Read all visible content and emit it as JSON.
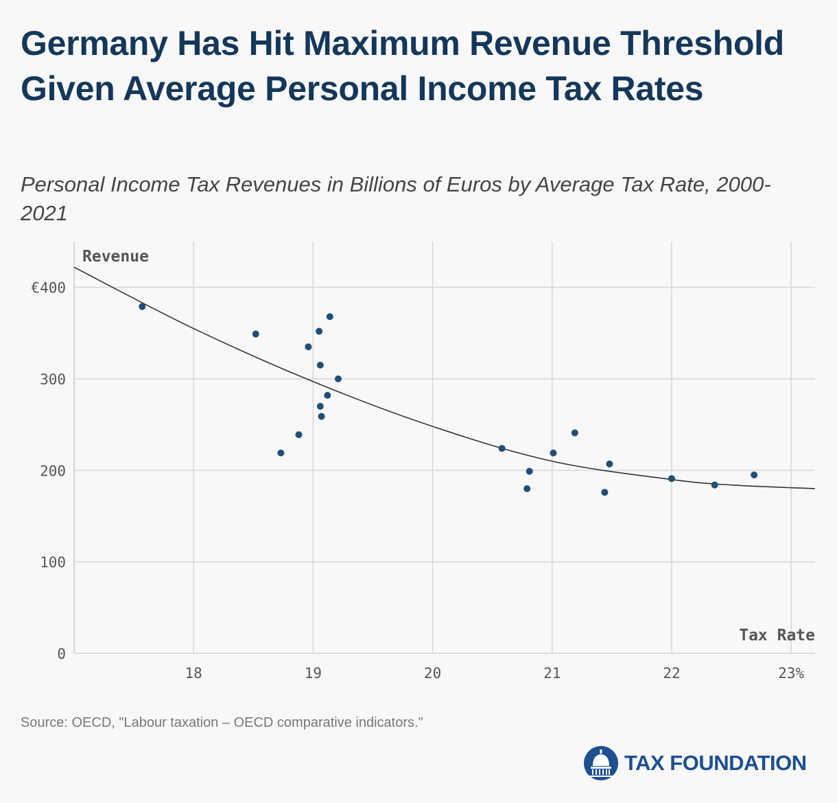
{
  "title": "Germany Has Hit Maximum Revenue Threshold Given Average Personal Income Tax Rates",
  "subtitle": "Personal Income Tax Revenues in Billions of Euros by Average Tax Rate, 2000-2021",
  "source": "Source: OECD, \"Labour taxation – OECD comparative indicators.\"",
  "logo": {
    "text": "TAX FOUNDATION",
    "icon": "capitol-dome-icon"
  },
  "colors": {
    "title": "#14375a",
    "points": "#1f4e79",
    "trend": "#333333",
    "grid": "#d6d6d6"
  },
  "chart_data": {
    "type": "scatter",
    "ylabel": "Revenue",
    "xlabel": "Tax Rate",
    "xlim": [
      17,
      23.2
    ],
    "ylim": [
      0,
      450
    ],
    "xticks": [
      18,
      19,
      20,
      21,
      22,
      23
    ],
    "xtick_labels": [
      "18",
      "19",
      "20",
      "21",
      "22",
      "23%"
    ],
    "yticks": [
      0,
      100,
      200,
      300,
      400
    ],
    "ytick_labels": [
      "0",
      "100",
      "200",
      "300",
      "€400"
    ],
    "grid": true,
    "points": [
      {
        "x": 17.57,
        "y": 379
      },
      {
        "x": 18.52,
        "y": 349
      },
      {
        "x": 18.73,
        "y": 219
      },
      {
        "x": 18.88,
        "y": 239
      },
      {
        "x": 18.96,
        "y": 335
      },
      {
        "x": 19.05,
        "y": 352
      },
      {
        "x": 19.06,
        "y": 315
      },
      {
        "x": 19.06,
        "y": 270
      },
      {
        "x": 19.07,
        "y": 259
      },
      {
        "x": 19.12,
        "y": 282
      },
      {
        "x": 19.14,
        "y": 368
      },
      {
        "x": 19.21,
        "y": 300
      },
      {
        "x": 20.58,
        "y": 224
      },
      {
        "x": 20.79,
        "y": 180
      },
      {
        "x": 20.81,
        "y": 199
      },
      {
        "x": 21.01,
        "y": 219
      },
      {
        "x": 21.19,
        "y": 241
      },
      {
        "x": 21.44,
        "y": 176
      },
      {
        "x": 21.48,
        "y": 207
      },
      {
        "x": 22.0,
        "y": 191
      },
      {
        "x": 22.36,
        "y": 184
      },
      {
        "x": 22.69,
        "y": 195
      }
    ],
    "trendline": {
      "type": "quadratic",
      "points": [
        {
          "x": 17.0,
          "y": 422
        },
        {
          "x": 18.0,
          "y": 355
        },
        {
          "x": 19.0,
          "y": 297
        },
        {
          "x": 20.0,
          "y": 248
        },
        {
          "x": 21.0,
          "y": 210
        },
        {
          "x": 22.0,
          "y": 190
        },
        {
          "x": 22.5,
          "y": 184
        },
        {
          "x": 23.2,
          "y": 180
        }
      ]
    }
  }
}
